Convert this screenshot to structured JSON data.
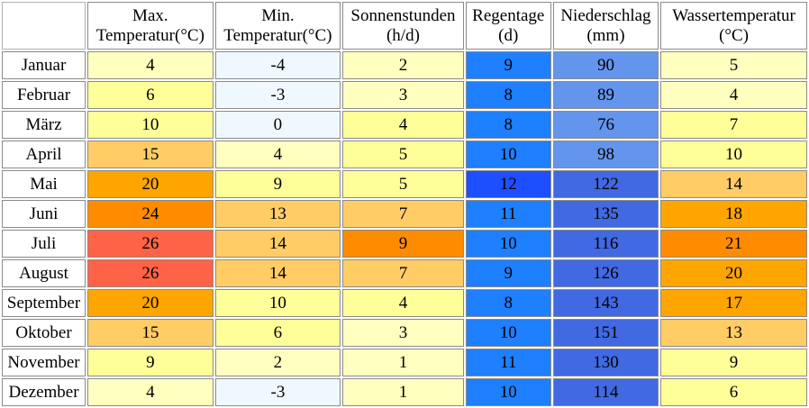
{
  "headers": [
    {
      "line1": "Max.",
      "line2": "Temperatur(°C)"
    },
    {
      "line1": "Min.",
      "line2": "Temperatur(°C)"
    },
    {
      "line1": "Sonnenstunden",
      "line2": "(h/d)"
    },
    {
      "line1": "Regentage",
      "line2": "(d)"
    },
    {
      "line1": "Niederschlag",
      "line2": "(mm)"
    },
    {
      "line1": "Wassertemperatur",
      "line2": "(°C)"
    }
  ],
  "rows": [
    {
      "month": "Januar",
      "values": [
        "4",
        "-4",
        "2",
        "9",
        "90",
        "5"
      ],
      "colors": [
        "#ffffc0",
        "#f0f8ff",
        "#ffffc0",
        "#1e7fff",
        "#6495ed",
        "#ffffc0"
      ]
    },
    {
      "month": "Februar",
      "values": [
        "6",
        "-3",
        "3",
        "8",
        "89",
        "4"
      ],
      "colors": [
        "#ffff99",
        "#f0f8ff",
        "#ffffc0",
        "#1e7fff",
        "#6495ed",
        "#ffffc0"
      ]
    },
    {
      "month": "März",
      "values": [
        "10",
        "0",
        "4",
        "8",
        "76",
        "7"
      ],
      "colors": [
        "#ffff99",
        "#f0f8ff",
        "#ffff99",
        "#1e7fff",
        "#6495ed",
        "#ffff99"
      ]
    },
    {
      "month": "April",
      "values": [
        "15",
        "4",
        "5",
        "10",
        "98",
        "10"
      ],
      "colors": [
        "#ffcc66",
        "#ffffc0",
        "#ffff99",
        "#1e7fff",
        "#6495ed",
        "#ffff99"
      ]
    },
    {
      "month": "Mai",
      "values": [
        "20",
        "9",
        "5",
        "12",
        "122",
        "14"
      ],
      "colors": [
        "#ffa500",
        "#ffff99",
        "#ffff99",
        "#1e4fff",
        "#4169e1",
        "#ffcc66"
      ]
    },
    {
      "month": "Juni",
      "values": [
        "24",
        "13",
        "7",
        "11",
        "135",
        "18"
      ],
      "colors": [
        "#ff8c00",
        "#ffcc66",
        "#ffcc66",
        "#1e7fff",
        "#4169e1",
        "#ffa500"
      ]
    },
    {
      "month": "Juli",
      "values": [
        "26",
        "14",
        "9",
        "10",
        "116",
        "21"
      ],
      "colors": [
        "#ff6347",
        "#ffcc66",
        "#ff8c00",
        "#1e7fff",
        "#4169e1",
        "#ff8c00"
      ]
    },
    {
      "month": "August",
      "values": [
        "26",
        "14",
        "7",
        "9",
        "126",
        "20"
      ],
      "colors": [
        "#ff6347",
        "#ffcc66",
        "#ffcc66",
        "#1e7fff",
        "#4169e1",
        "#ffa500"
      ]
    },
    {
      "month": "September",
      "values": [
        "20",
        "10",
        "4",
        "8",
        "143",
        "17"
      ],
      "colors": [
        "#ffa500",
        "#ffff99",
        "#ffff99",
        "#1e7fff",
        "#4169e1",
        "#ffa500"
      ]
    },
    {
      "month": "Oktober",
      "values": [
        "15",
        "6",
        "3",
        "10",
        "151",
        "13"
      ],
      "colors": [
        "#ffcc66",
        "#ffff99",
        "#ffffc0",
        "#1e7fff",
        "#4169e1",
        "#ffcc66"
      ]
    },
    {
      "month": "November",
      "values": [
        "9",
        "2",
        "1",
        "11",
        "130",
        "9"
      ],
      "colors": [
        "#ffff99",
        "#ffffc0",
        "#ffffc0",
        "#1e7fff",
        "#4169e1",
        "#ffff99"
      ]
    },
    {
      "month": "Dezember",
      "values": [
        "4",
        "-3",
        "1",
        "10",
        "114",
        "6"
      ],
      "colors": [
        "#ffffc0",
        "#f0f8ff",
        "#ffffc0",
        "#1e7fff",
        "#4169e1",
        "#ffff99"
      ]
    }
  ]
}
